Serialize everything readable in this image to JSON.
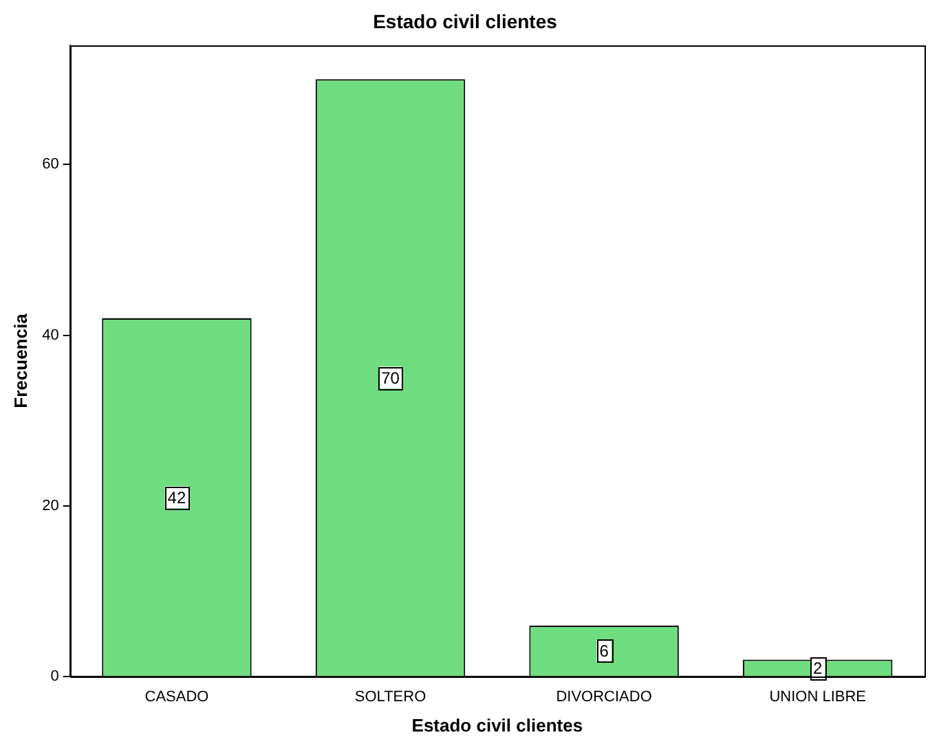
{
  "chart_data": {
    "type": "bar",
    "title": "Estado civil clientes",
    "xlabel": "Estado civil clientes",
    "ylabel": "Frecuencia",
    "categories": [
      "CASADO",
      "SOLTERO",
      "DIVORCIADO",
      "UNION LIBRE"
    ],
    "values": [
      42,
      70,
      6,
      2
    ],
    "color": "#70dc80",
    "ylim": [
      0,
      74
    ],
    "yticks": [
      0,
      20,
      40,
      60
    ],
    "grid": false,
    "legend": false,
    "data_labels": true
  }
}
